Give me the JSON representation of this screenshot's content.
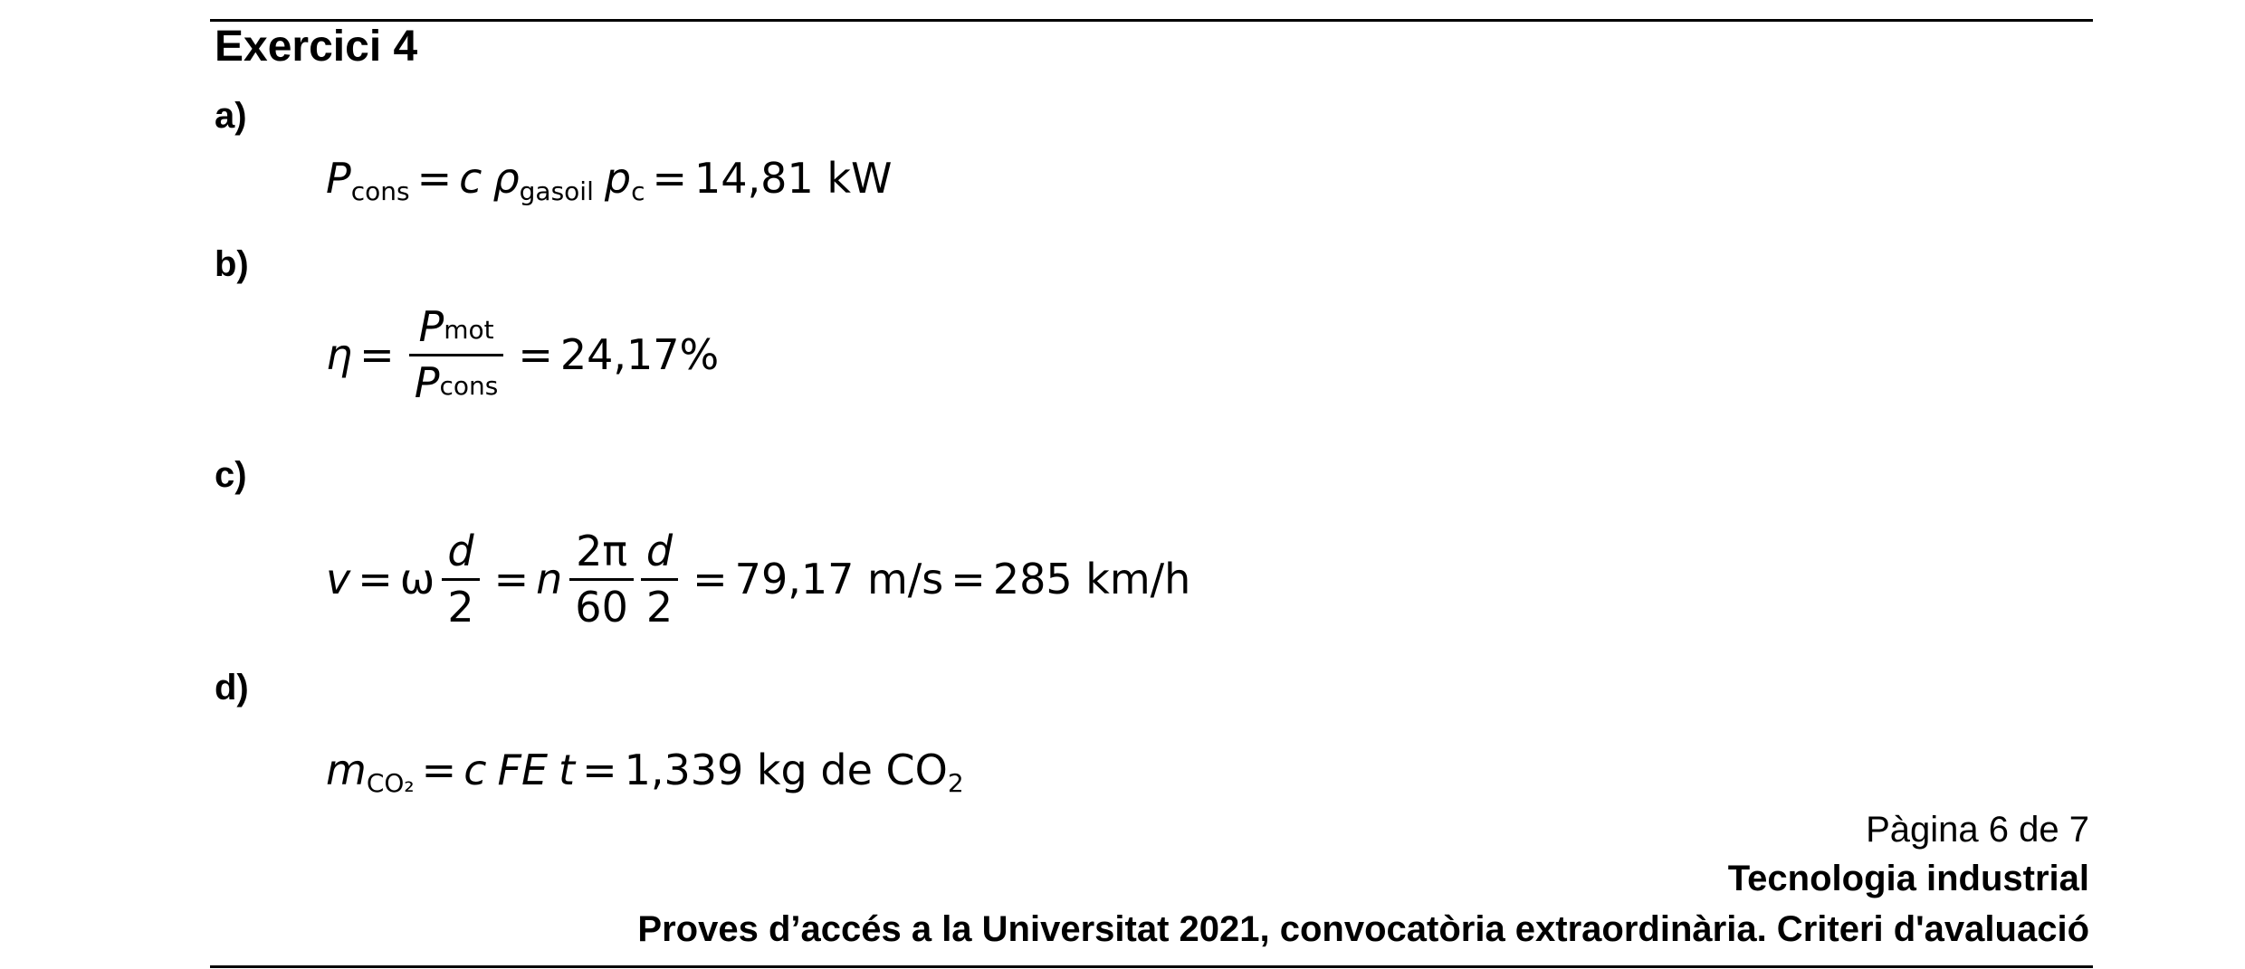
{
  "title": "Exercici 4",
  "parts": {
    "a": "a)",
    "b": "b)",
    "c": "c)",
    "d": "d)"
  },
  "eq_a": {
    "P": "P",
    "sub_cons": "cons",
    "eq1": "=",
    "c": "c",
    "rho": "ρ",
    "sub_gasoil": "gasoil",
    "p": "p",
    "sub_c": "c",
    "eq2": "=",
    "result": "14,81 kW"
  },
  "eq_b": {
    "eta": "η",
    "eq1": "=",
    "num_P": "P",
    "num_sub": "mot",
    "den_P": "P",
    "den_sub": "cons",
    "eq2": "=",
    "result": "24,17%"
  },
  "eq_c": {
    "v": "v",
    "eq1": "=",
    "omega": "ω",
    "f1_num": "d",
    "f1_den": "2",
    "eq2": "=",
    "n": "n",
    "f2_num": "2π",
    "f2_den": "60",
    "f3_num": "d",
    "f3_den": "2",
    "eq3": "=",
    "result1": "79,17 m/s",
    "eq4": "=",
    "result2": "285 km/h"
  },
  "eq_d": {
    "m": "m",
    "sub_co2": "CO₂",
    "eq1": "=",
    "c": "c",
    "FE": "FE",
    "t": "t",
    "eq2": "=",
    "result": "1,339 kg de CO",
    "result_sub": "2"
  },
  "footer": {
    "page": "Pàgina 6 de 7",
    "subject": "Tecnologia industrial",
    "exam": "Proves d’accés a la Universitat 2021, convocatòria extraordinària. Criteri d'avaluació"
  }
}
